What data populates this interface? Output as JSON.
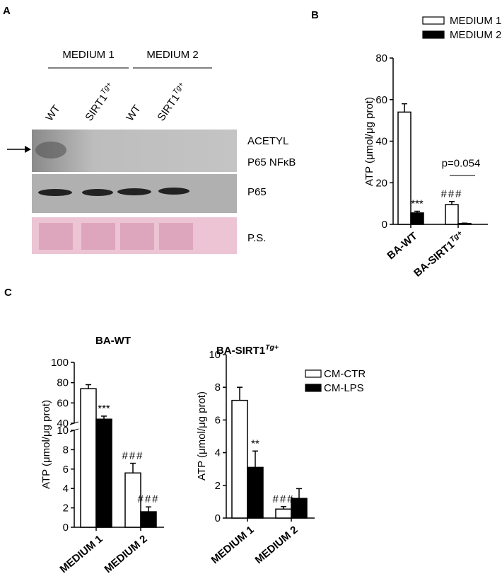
{
  "panel_labels": [
    "A",
    "B",
    "C"
  ],
  "blot": {
    "groups": [
      "MEDIUM 1",
      "MEDIUM 2"
    ],
    "lanes": [
      {
        "text": "WT"
      },
      {
        "text": "SIRT1",
        "sup": "Tg+"
      },
      {
        "text": "WT"
      },
      {
        "text": "SIRT1",
        "sup": "Tg+"
      }
    ],
    "rows": [
      [
        "ACETYL",
        "P65 NFκB"
      ],
      [
        "P65"
      ],
      [
        "P.S."
      ]
    ]
  },
  "chart_data": [
    {
      "type": "bar",
      "y_label": "ATP (μmol/μg prot)",
      "categories": [
        "BA-WT",
        "BA-SIRT1"
      ],
      "category_superscripts": [
        null,
        "Tg+"
      ],
      "series": [
        {
          "name": "MEDIUM 1",
          "color": "#ffffff",
          "values": [
            54,
            9.5
          ],
          "errors": [
            4,
            1.5
          ]
        },
        {
          "name": "MEDIUM 2",
          "color": "#000000",
          "values": [
            5.5,
            0.4
          ],
          "errors": [
            0.8,
            0.2
          ]
        }
      ],
      "ylim": [
        0,
        80
      ],
      "yticks": [
        0,
        20,
        40,
        60,
        80
      ],
      "legend": true,
      "annotations": [
        {
          "text": "***",
          "category": 0,
          "series": 1
        },
        {
          "text": "###",
          "category": 1,
          "series": 0
        },
        {
          "text": "p=0.054",
          "category": 1
        }
      ]
    },
    {
      "type": "bar",
      "title": "BA-WT",
      "y_label": "ATP (μmol/μg prot)",
      "categories": [
        "MEDIUM 1",
        "MEDIUM 2"
      ],
      "series": [
        {
          "name": "CM-CTR",
          "color": "#ffffff",
          "values": [
            74,
            5.6
          ],
          "errors": [
            4,
            1
          ]
        },
        {
          "name": "CM-LPS",
          "color": "#000000",
          "values": [
            44,
            1.6
          ],
          "errors": [
            3,
            0.5
          ]
        }
      ],
      "ylim": [
        0,
        100
      ],
      "ybreak": [
        10,
        40
      ],
      "yticks": [
        0,
        2,
        4,
        6,
        8,
        10,
        40,
        60,
        80,
        100
      ],
      "legend": false,
      "annotations": [
        {
          "text": "***",
          "category": 0,
          "series": 1
        },
        {
          "text": "###",
          "category": 1,
          "series": 0
        },
        {
          "text": "###",
          "category": 1,
          "series": 1
        }
      ]
    },
    {
      "type": "bar",
      "title": "BA-SIRT1",
      "title_superscript": "Tg+",
      "y_label": "ATP (μmol/μg prot)",
      "categories": [
        "MEDIUM 1",
        "MEDIUM 2"
      ],
      "series": [
        {
          "name": "CM-CTR",
          "color": "#ffffff",
          "values": [
            7.2,
            0.55
          ],
          "errors": [
            0.8,
            0.15
          ]
        },
        {
          "name": "CM-LPS",
          "color": "#000000",
          "values": [
            3.1,
            1.2
          ],
          "errors": [
            1,
            0.6
          ]
        }
      ],
      "ylim": [
        0,
        10
      ],
      "yticks": [
        0,
        2,
        4,
        6,
        8,
        10
      ],
      "legend": true,
      "annotations": [
        {
          "text": "**",
          "category": 0,
          "series": 1
        },
        {
          "text": "###",
          "category": 1,
          "series": 0
        }
      ]
    }
  ]
}
